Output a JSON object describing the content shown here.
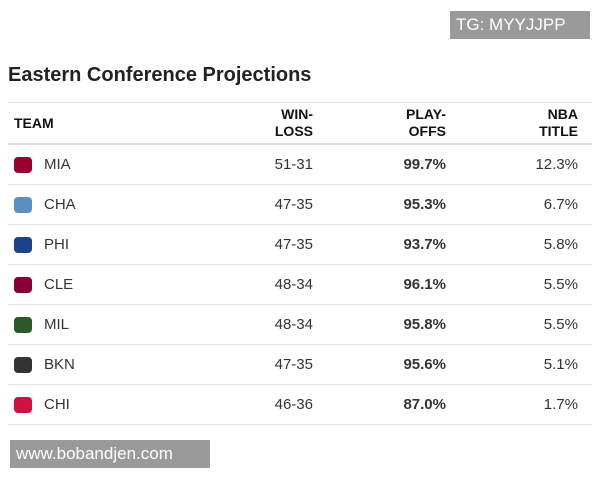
{
  "watermark_top": "TG: MYYJJPP",
  "title": "Eastern Conference Projections",
  "table": {
    "header": [
      "TEAM",
      "WIN-\nLOSS",
      "PLAY-\nOFFS",
      "NBA\nTITLE"
    ],
    "rows": [
      [
        "MIA",
        "51-31",
        "99.7%",
        "12.3%"
      ],
      [
        "CHA",
        "47-35",
        "95.3%",
        "6.7%"
      ],
      [
        "PHI",
        "47-35",
        "93.7%",
        "5.8%"
      ],
      [
        "CLE",
        "48-34",
        "96.1%",
        "5.5%"
      ],
      [
        "MIL",
        "48-34",
        "95.8%",
        "5.5%"
      ],
      [
        "BKN",
        "47-35",
        "95.6%",
        "5.1%"
      ],
      [
        "CHI",
        "46-36",
        "87.0%",
        "1.7%"
      ]
    ]
  },
  "watermark_bottom": "www.bobandjen.com"
}
